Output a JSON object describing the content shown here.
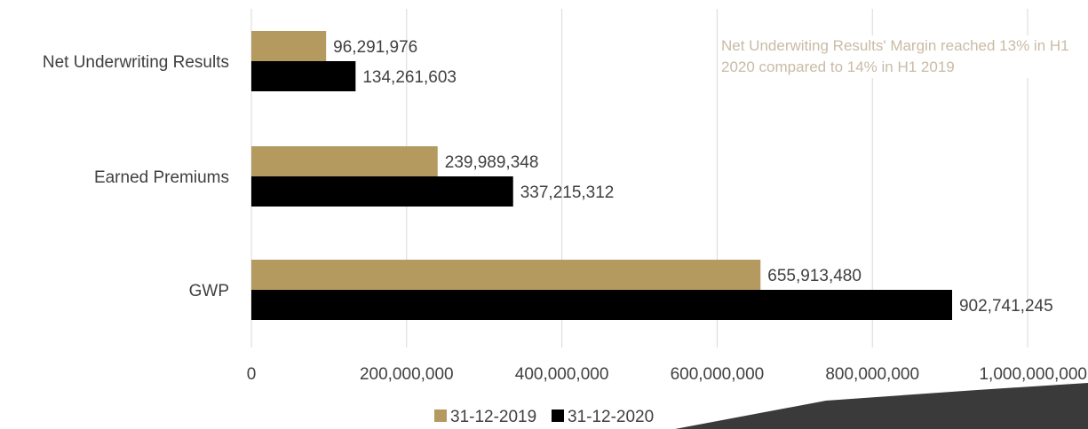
{
  "chart_data": {
    "type": "bar",
    "orientation": "horizontal",
    "categories": [
      "Net Underwriting Results",
      "Earned Premiums",
      "GWP"
    ],
    "series": [
      {
        "name": "31-12-2019",
        "values": [
          96291976,
          239989348,
          655913480
        ],
        "labels": [
          "96,291,976",
          "239,989,348",
          "655,913,480"
        ]
      },
      {
        "name": "31-12-2020",
        "values": [
          134261603,
          337215312,
          902741245
        ],
        "labels": [
          "134,261,603",
          "337,215,312",
          "902,741,245"
        ]
      }
    ],
    "x_ticks": [
      {
        "value": 0,
        "label": "0"
      },
      {
        "value": 200000000,
        "label": "200,000,000"
      },
      {
        "value": 400000000,
        "label": "400,000,000"
      },
      {
        "value": 600000000,
        "label": "600,000,000"
      },
      {
        "value": 800000000,
        "label": "800,000,000"
      },
      {
        "value": 1000000000,
        "label": "1,000,000,000"
      }
    ],
    "xlim": [
      0,
      1000000000
    ],
    "grid": true,
    "legend": "bottom",
    "title": "",
    "xlabel": "",
    "ylabel": "",
    "annotation": "Net Underwiting Results' Margin reached 13% in H1 2020 compared to 14% in H1 2019"
  },
  "colors": {
    "series_2019": "#b59a5f",
    "series_2020": "#000000",
    "gridline": "#d9d9d9",
    "text": "#404040",
    "annotation": "#c9bba5",
    "corner_shape": "#3a3a3a"
  }
}
